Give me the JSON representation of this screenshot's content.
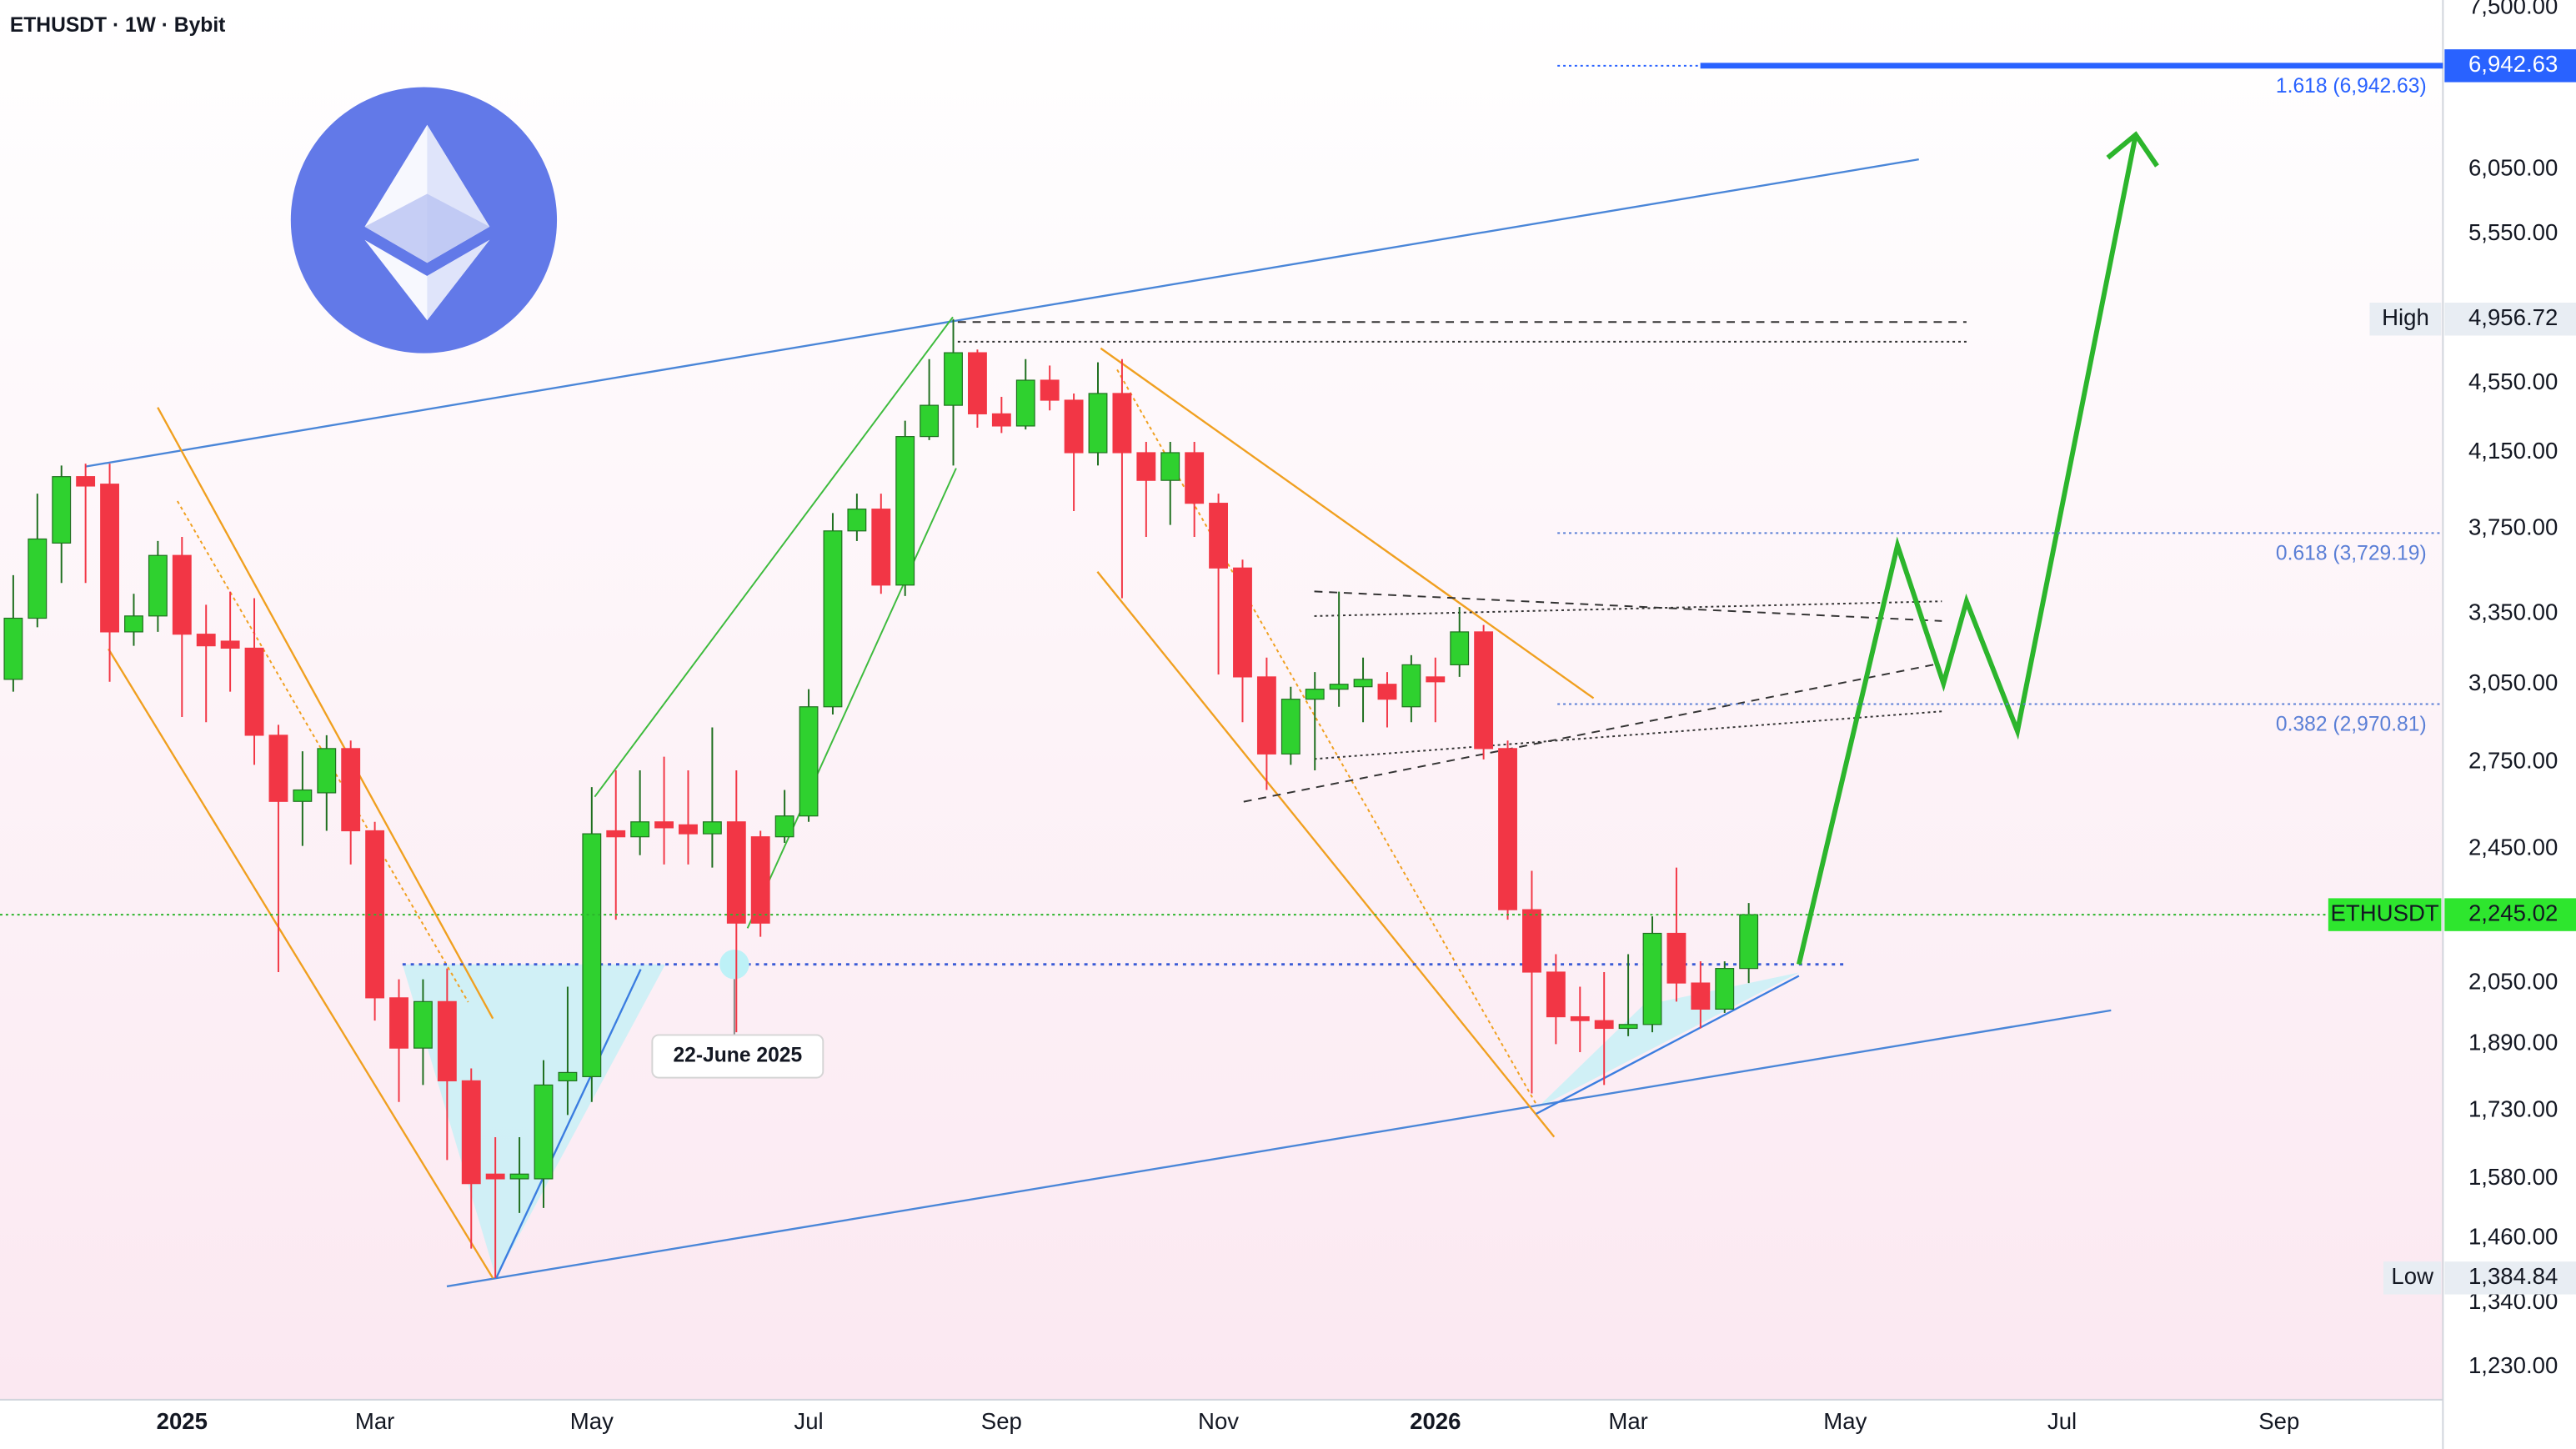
{
  "chart_data": {
    "type": "candlestick",
    "title": "ETHUSDT · 1W · Bybit",
    "log_scale": true,
    "grid": false,
    "up_color": "#2fd12f",
    "down_color": "#f23645",
    "xlim": [
      -0.55,
      100.8
    ],
    "xticks": [
      {
        "value": 7,
        "label": "2025"
      },
      {
        "value": 15,
        "label": "Mar"
      },
      {
        "value": 24,
        "label": "May"
      },
      {
        "value": 33,
        "label": "Jul"
      },
      {
        "value": 41,
        "label": "Sep"
      },
      {
        "value": 50,
        "label": "Nov"
      },
      {
        "value": 59,
        "label": "2026"
      },
      {
        "value": 67,
        "label": "Mar"
      },
      {
        "value": 76,
        "label": "May"
      },
      {
        "value": 85,
        "label": "Jul"
      },
      {
        "value": 94,
        "label": "Sep"
      }
    ],
    "ylim": [
      1183,
      7577
    ],
    "yticks": [
      {
        "value": 7500,
        "label": "7,500.00"
      },
      {
        "value": 6050,
        "label": "6,050.00"
      },
      {
        "value": 5550,
        "label": "5,550.00"
      },
      {
        "value": 4550,
        "label": "4,550.00"
      },
      {
        "value": 4150,
        "label": "4,150.00"
      },
      {
        "value": 3750,
        "label": "3,750.00"
      },
      {
        "value": 3350,
        "label": "3,350.00"
      },
      {
        "value": 3050,
        "label": "3,050.00"
      },
      {
        "value": 2750,
        "label": "2,750.00"
      },
      {
        "value": 2450,
        "label": "2,450.00"
      },
      {
        "value": 2050,
        "label": "2,050.00"
      },
      {
        "value": 1890,
        "label": "1,890.00"
      },
      {
        "value": 1730,
        "label": "1,730.00"
      },
      {
        "value": 1580,
        "label": "1,580.00"
      },
      {
        "value": 1460,
        "label": "1,460.00"
      },
      {
        "value": 1340,
        "label": "1,340.00"
      },
      {
        "value": 1230,
        "label": "1,230.00"
      }
    ],
    "open": [
      3070,
      3330,
      3680,
      4020,
      3980,
      3270,
      3340,
      3620,
      3260,
      3230,
      3200,
      2850,
      2610,
      2640,
      2800,
      2510,
      2010,
      1880,
      2000,
      1800,
      1590,
      1580,
      1580,
      1800,
      1810,
      2510,
      2490,
      2540,
      2530,
      2500,
      2540,
      2490,
      2490,
      2560,
      2960,
      3740,
      3850,
      3480,
      4240,
      4420,
      4740,
      4370,
      4300,
      4570,
      4450,
      4150,
      4490,
      4150,
      4000,
      4150,
      3880,
      3560,
      3080,
      2780,
      2990,
      3030,
      3040,
      3050,
      2960,
      3080,
      3130,
      3270,
      2800,
      2260,
      2080,
      1960,
      1950,
      1930,
      1940,
      2190,
      2050,
      1980,
      2090
    ],
    "high": [
      3526,
      3930,
      4080,
      4090,
      4090,
      3440,
      3690,
      3710,
      3390,
      3450,
      3420,
      2890,
      2790,
      2850,
      2830,
      2540,
      2060,
      2060,
      2090,
      1830,
      1670,
      1670,
      1850,
      2040,
      2660,
      2720,
      2720,
      2770,
      2720,
      2880,
      2720,
      2510,
      2650,
      3030,
      3830,
      3930,
      3930,
      4330,
      4700,
      4956.72,
      4760,
      4470,
      4700,
      4660,
      4490,
      4680,
      4700,
      4210,
      4210,
      4210,
      3930,
      3600,
      3160,
      3040,
      3100,
      3450,
      3160,
      3100,
      3170,
      3160,
      3380,
      3300,
      2830,
      2380,
      2130,
      2040,
      2080,
      2130,
      2240,
      2390,
      2110,
      2110,
      2280
    ],
    "low": [
      3020,
      3290,
      3490,
      3490,
      3060,
      3210,
      3270,
      2920,
      2900,
      3020,
      2740,
      2080,
      2460,
      2510,
      2400,
      1950,
      1750,
      1790,
      1620,
      1440,
      1384.84,
      1510,
      1520,
      1720,
      1750,
      2230,
      2430,
      2400,
      2400,
      2390,
      1920,
      2180,
      2470,
      2540,
      2930,
      3690,
      3440,
      3430,
      4220,
      4080,
      4290,
      4260,
      4280,
      4390,
      3840,
      4080,
      3420,
      3710,
      3770,
      3710,
      3090,
      2900,
      2650,
      2740,
      2720,
      2960,
      2900,
      2880,
      2900,
      2900,
      3080,
      2760,
      2230,
      1770,
      1890,
      1870,
      1790,
      1910,
      1920,
      2000,
      1930,
      1970,
      2050
    ],
    "close": [
      3330,
      3700,
      4020,
      3970,
      3270,
      3340,
      3620,
      3260,
      3210,
      3200,
      2850,
      2610,
      2650,
      2800,
      2510,
      2010,
      1880,
      2000,
      1800,
      1570,
      1580,
      1590,
      1790,
      1820,
      2500,
      2490,
      2540,
      2520,
      2500,
      2540,
      2220,
      2220,
      2560,
      2960,
      3740,
      3850,
      3480,
      4240,
      4420,
      4740,
      4370,
      4300,
      4570,
      4450,
      4150,
      4490,
      4150,
      4000,
      4150,
      3880,
      3560,
      3080,
      2780,
      2990,
      3030,
      3050,
      3070,
      2990,
      3130,
      3060,
      3270,
      2800,
      2260,
      2080,
      1960,
      1950,
      1930,
      1940,
      2190,
      2050,
      1980,
      2090,
      2245.02
    ],
    "levels": [
      {
        "label": "1.618 (6,942.63)",
        "value": 6942.63,
        "price_label": "6,942.63",
        "color": "#2962ff"
      },
      {
        "label": "0.618 (3,729.19)",
        "value": 3729.19,
        "color": "#5b7fd6"
      },
      {
        "label": "0.382 (2,970.81)",
        "value": 2970.81,
        "color": "#5b7fd6"
      }
    ],
    "markers": [
      {
        "name": "High",
        "value": 4956.72,
        "price_label": "4,956.72",
        "color": "#e8edf3"
      },
      {
        "name": "ETHUSDT",
        "value": 2245.02,
        "price_label": "2,245.02",
        "color": "#2ee62e"
      },
      {
        "name": "Low",
        "value": 1384.84,
        "price_label": "1,384.84",
        "color": "#e8edf3"
      }
    ],
    "annotation": "22-June 2025"
  }
}
